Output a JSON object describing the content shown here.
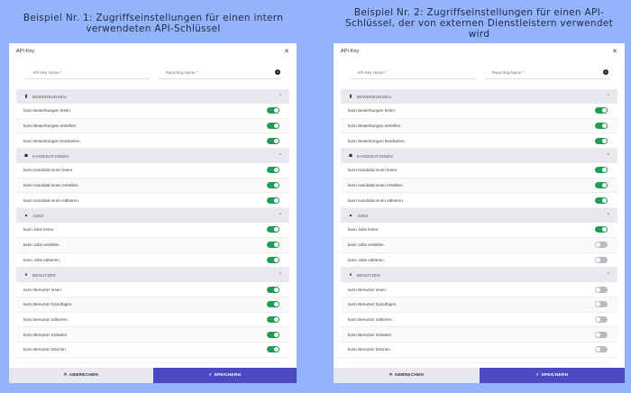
{
  "captions": [
    "Beispiel Nr. 1: Zugriffseinstellungen für einen intern verwendeten API-Schlüssel",
    "Beispiel Nr. 2: Zugriffseinstellungen für einen API-Schlüssel, der von externen Dienstleistern verwendet wird"
  ],
  "colors": {
    "background": "#93b4fb",
    "toggle_on": "#1f9d55",
    "toggle_off": "#b9bac1",
    "save_button": "#4b4ac4",
    "section_header": "#e8e9ee"
  },
  "panels": [
    {
      "title": "API-Key",
      "close_icon": "close-icon",
      "fields": {
        "api_key_name_placeholder": "API-Key Name *",
        "reporting_name_placeholder": "Reporting-Name *",
        "api_key_name_value": "",
        "reporting_name_value": ""
      },
      "sections": [
        {
          "icon": "document-icon",
          "glyph": "▮",
          "title": "BEWERBUNGEN",
          "permissions": [
            {
              "label": "kann Bewerbungen lesen.",
              "enabled": true
            },
            {
              "label": "kann Bewerbungen erstellen.",
              "enabled": true
            },
            {
              "label": "kann Bewerbungen bearbeiten.",
              "enabled": true
            }
          ]
        },
        {
          "icon": "users-icon",
          "glyph": "☗",
          "title": "KANDIDAT:INNEN",
          "permissions": [
            {
              "label": "kann Kandidat:innen lesen.",
              "enabled": true
            },
            {
              "label": "kann Kandidat:innen erstellen.",
              "enabled": true
            },
            {
              "label": "kann Kandidat:innen editieren.",
              "enabled": true
            }
          ]
        },
        {
          "icon": "briefcase-icon",
          "glyph": "▲",
          "title": "JOBS",
          "permissions": [
            {
              "label": "kann Jobs lesen.",
              "enabled": true
            },
            {
              "label": "kann Jobs erstellen.",
              "enabled": true
            },
            {
              "label": "kann Jobs editieren.",
              "enabled": true
            }
          ]
        },
        {
          "icon": "user-circle-icon",
          "glyph": "●",
          "title": "BENUTZER",
          "permissions": [
            {
              "label": "kann Benutzer lesen.",
              "enabled": true
            },
            {
              "label": "kann Benutzer hinzufügen.",
              "enabled": true
            },
            {
              "label": "kann Benutzer editieren.",
              "enabled": true
            },
            {
              "label": "kann Benutzer einladen",
              "enabled": true
            },
            {
              "label": "kann Benutzer löschen.",
              "enabled": true
            }
          ]
        }
      ],
      "cancel_label": "ABBRECHEN",
      "save_label": "SPEICHERN"
    },
    {
      "title": "API-Key",
      "close_icon": "close-icon",
      "fields": {
        "api_key_name_placeholder": "API-Key Name *",
        "reporting_name_placeholder": "Reporting-Name *",
        "api_key_name_value": "",
        "reporting_name_value": ""
      },
      "sections": [
        {
          "icon": "document-icon",
          "glyph": "▮",
          "title": "BEWERBUNGEN",
          "permissions": [
            {
              "label": "kann Bewerbungen lesen.",
              "enabled": true
            },
            {
              "label": "kann Bewerbungen erstellen.",
              "enabled": true
            },
            {
              "label": "kann Bewerbungen bearbeiten.",
              "enabled": true
            }
          ]
        },
        {
          "icon": "users-icon",
          "glyph": "☗",
          "title": "KANDIDAT:INNEN",
          "permissions": [
            {
              "label": "kann Kandidat:innen lesen.",
              "enabled": true
            },
            {
              "label": "kann Kandidat:innen erstellen.",
              "enabled": true
            },
            {
              "label": "kann Kandidat:innen editieren.",
              "enabled": true
            }
          ]
        },
        {
          "icon": "briefcase-icon",
          "glyph": "▲",
          "title": "JOBS",
          "permissions": [
            {
              "label": "kann Jobs lesen.",
              "enabled": true
            },
            {
              "label": "kann Jobs erstellen.",
              "enabled": false
            },
            {
              "label": "kann Jobs editieren.",
              "enabled": false
            }
          ]
        },
        {
          "icon": "user-circle-icon",
          "glyph": "●",
          "title": "BENUTZER",
          "permissions": [
            {
              "label": "kann Benutzer lesen.",
              "enabled": false
            },
            {
              "label": "kann Benutzer hinzufügen.",
              "enabled": false
            },
            {
              "label": "kann Benutzer editieren.",
              "enabled": false
            },
            {
              "label": "kann Benutzer einladen",
              "enabled": false
            },
            {
              "label": "kann Benutzer löschen.",
              "enabled": false
            }
          ]
        }
      ],
      "cancel_label": "ABBRECHEN",
      "save_label": "SPEICHERN"
    }
  ]
}
